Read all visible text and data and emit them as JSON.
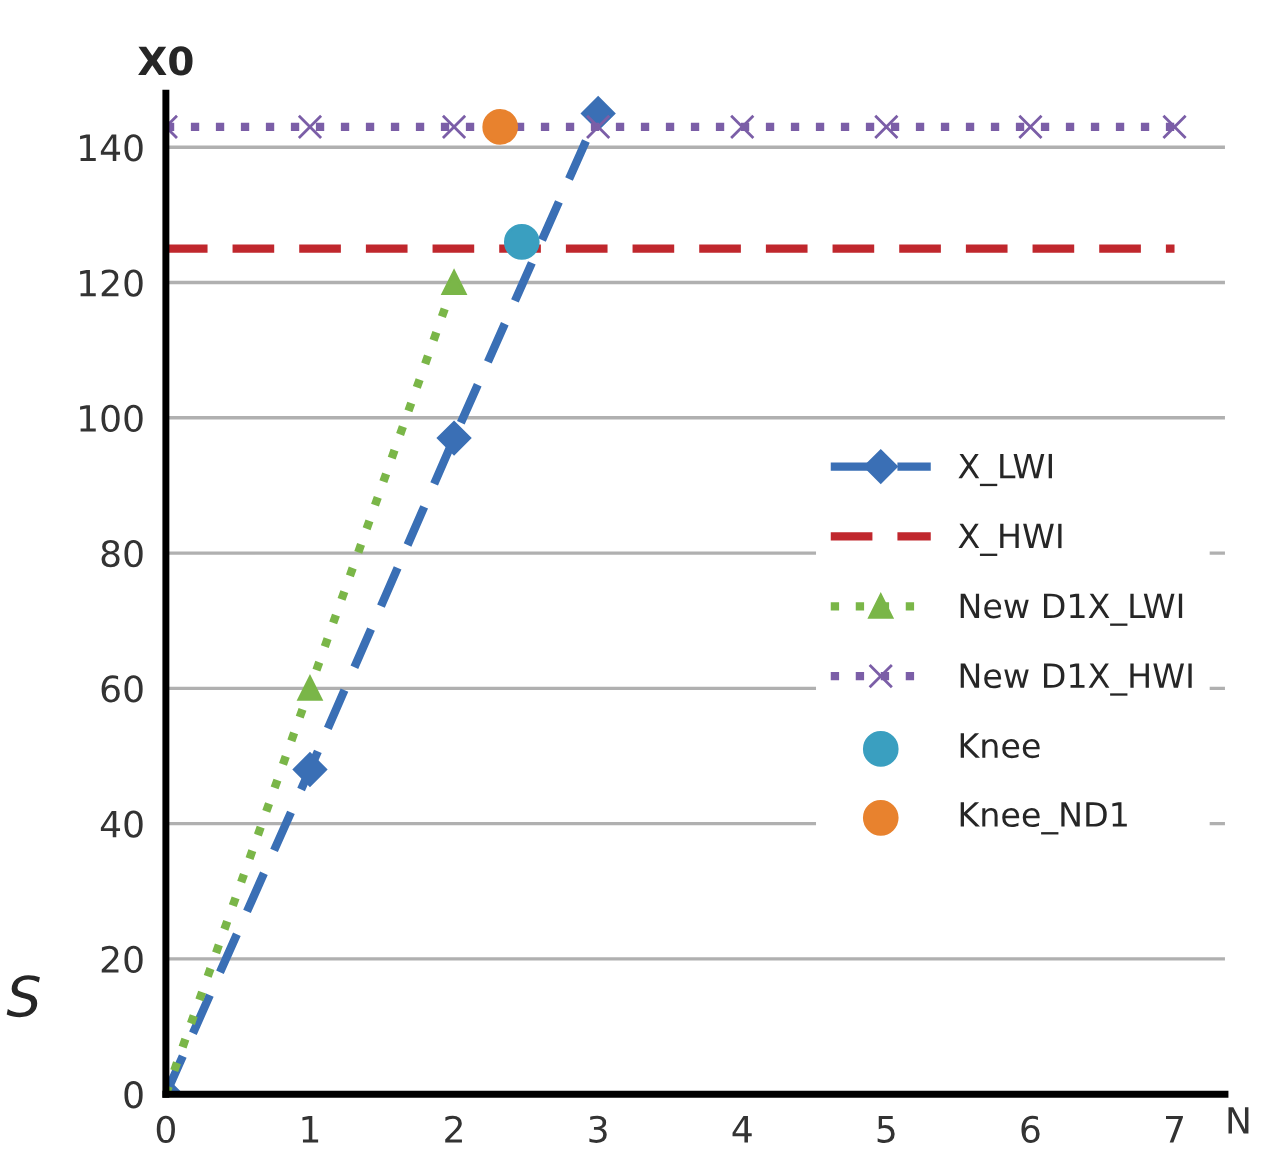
{
  "chart_data": {
    "type": "line",
    "ylabel": "X0",
    "xlabel": "N",
    "xlim": [
      0,
      7.35
    ],
    "xticks": [
      0,
      1,
      2,
      3,
      4,
      5,
      6,
      7
    ],
    "ylim": [
      0,
      148
    ],
    "yticks": [
      0,
      20,
      40,
      60,
      80,
      100,
      120,
      140
    ],
    "grid": "y",
    "legend": "right",
    "series": [
      {
        "name": "X_LWI",
        "color": "#3a6fb5",
        "x": [
          0,
          1,
          2,
          3
        ],
        "values": [
          0,
          48,
          97,
          145
        ],
        "marker": "diamond",
        "line_style": "dashed"
      },
      {
        "name": "X_HWI",
        "color": "#c0272d",
        "x": [
          0,
          7
        ],
        "values": [
          125,
          125
        ],
        "marker": "none",
        "line_style": "dashed"
      },
      {
        "name": "New D1X_LWI",
        "color": "#7ab648",
        "x": [
          0,
          1,
          2
        ],
        "values": [
          0,
          60,
          120
        ],
        "marker": "triangle",
        "line_style": "dotted"
      },
      {
        "name": "New D1X_HWI",
        "color": "#7b5ea7",
        "x": [
          0,
          1,
          2,
          3,
          4,
          5,
          6,
          7
        ],
        "values": [
          143,
          143,
          143,
          143,
          143,
          143,
          143,
          143
        ],
        "marker": "cross",
        "line_style": "dotted"
      },
      {
        "name": "Knee",
        "type": "scatter",
        "color": "#3a9fc0",
        "x": [
          2.47
        ],
        "values": [
          126
        ],
        "marker": "circle"
      },
      {
        "name": "Knee_ND1",
        "type": "scatter",
        "color": "#e8822e",
        "x": [
          2.32
        ],
        "values": [
          143
        ],
        "marker": "circle"
      }
    ],
    "annotations": [
      "S"
    ]
  }
}
